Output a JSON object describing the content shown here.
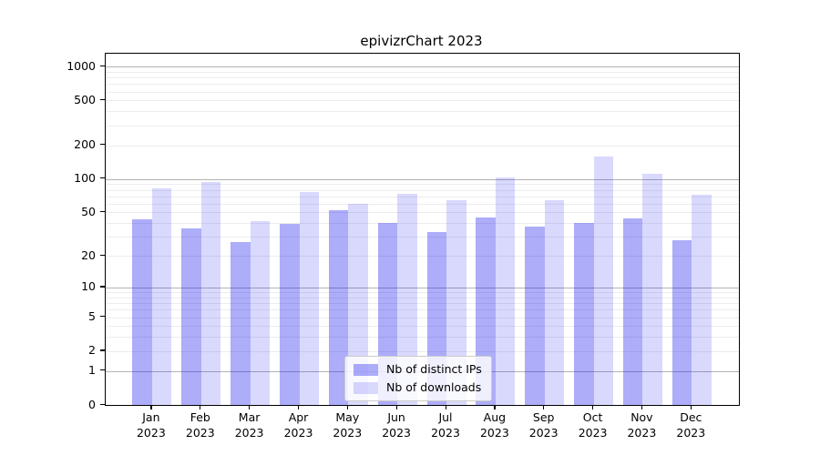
{
  "chart_data": {
    "type": "bar",
    "title": "epivizrChart 2023",
    "categories": [
      "Jan 2023",
      "Feb 2023",
      "Mar 2023",
      "Apr 2023",
      "May 2023",
      "Jun 2023",
      "Jul 2023",
      "Aug 2023",
      "Sep 2023",
      "Oct 2023",
      "Nov 2023",
      "Dec 2023"
    ],
    "series": [
      {
        "name": "Nb of distinct IPs",
        "color": "rgba(20,20,240,0.35)",
        "values": [
          43,
          36,
          27,
          39,
          52,
          40,
          33,
          45,
          37,
          40,
          44,
          28
        ]
      },
      {
        "name": "Nb of downloads",
        "color": "rgba(20,20,240,0.16)",
        "values": [
          82,
          93,
          42,
          76,
          60,
          74,
          65,
          103,
          65,
          160,
          112,
          72
        ]
      }
    ],
    "yscale": "log1p",
    "ylim": [
      0,
      1300
    ],
    "yticks": [
      0,
      1,
      2,
      5,
      10,
      20,
      50,
      100,
      200,
      500,
      1000
    ],
    "grid": {
      "major": [
        1,
        10,
        100,
        1000
      ],
      "minor": [
        2,
        3,
        4,
        5,
        6,
        7,
        8,
        9,
        20,
        30,
        40,
        50,
        60,
        70,
        80,
        90,
        200,
        300,
        400,
        500,
        600,
        700,
        800,
        900
      ]
    },
    "legend_position": "lower center",
    "colors": {
      "grid_major": "#b3b3b3",
      "grid_minor": "#ececec",
      "spine": "#000000",
      "legend_border": "#cccccc",
      "legend_bg": "rgba(255,255,255,0.8)"
    }
  }
}
